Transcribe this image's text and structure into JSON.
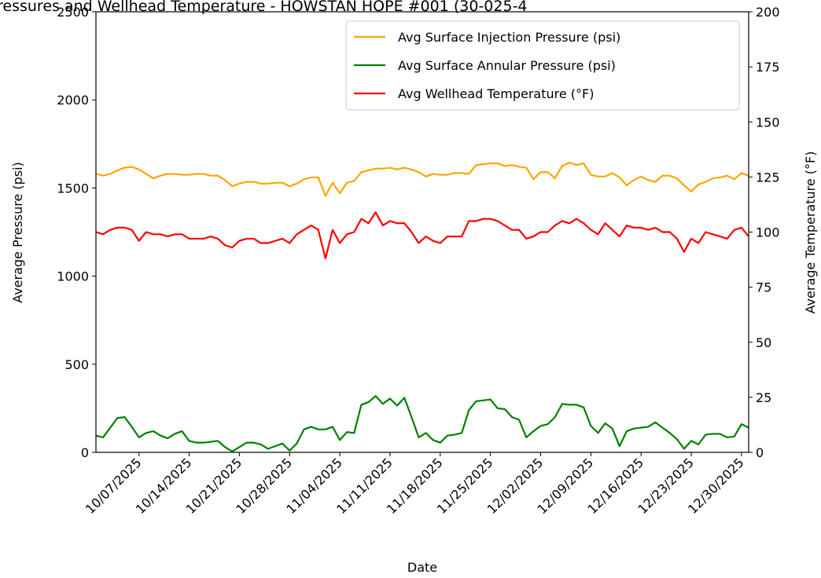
{
  "chart_data": {
    "type": "line",
    "title": "ressures and Wellhead Temperature - HOWSTAN HOPE #001 (30-025-4",
    "xlabel": "Date",
    "ylabel": "Average Pressure (psi)",
    "y2label": "Average Temperature (°F)",
    "x": [
      "10/01/2025",
      "10/02/2025",
      "10/03/2025",
      "10/04/2025",
      "10/05/2025",
      "10/06/2025",
      "10/07/2025",
      "10/08/2025",
      "10/09/2025",
      "10/10/2025",
      "10/11/2025",
      "10/12/2025",
      "10/13/2025",
      "10/14/2025",
      "10/15/2025",
      "10/16/2025",
      "10/17/2025",
      "10/18/2025",
      "10/19/2025",
      "10/20/2025",
      "10/21/2025",
      "10/22/2025",
      "10/23/2025",
      "10/24/2025",
      "10/25/2025",
      "10/26/2025",
      "10/27/2025",
      "10/28/2025",
      "10/29/2025",
      "10/30/2025",
      "10/31/2025",
      "11/01/2025",
      "11/02/2025",
      "11/03/2025",
      "11/04/2025",
      "11/05/2025",
      "11/06/2025",
      "11/07/2025",
      "11/08/2025",
      "11/09/2025",
      "11/10/2025",
      "11/11/2025",
      "11/12/2025",
      "11/13/2025",
      "11/14/2025",
      "11/15/2025",
      "11/16/2025",
      "11/17/2025",
      "11/18/2025",
      "11/19/2025",
      "11/20/2025",
      "11/21/2025",
      "11/22/2025",
      "11/23/2025",
      "11/24/2025",
      "11/25/2025",
      "11/26/2025",
      "11/27/2025",
      "11/28/2025",
      "11/29/2025",
      "11/30/2025",
      "12/01/2025",
      "12/02/2025",
      "12/03/2025",
      "12/04/2025",
      "12/05/2025",
      "12/06/2025",
      "12/07/2025",
      "12/08/2025",
      "12/09/2025",
      "12/10/2025",
      "12/11/2025",
      "12/12/2025",
      "12/13/2025",
      "12/14/2025",
      "12/15/2025",
      "12/16/2025",
      "12/17/2025",
      "12/18/2025",
      "12/19/2025",
      "12/20/2025",
      "12/21/2025",
      "12/22/2025",
      "12/23/2025",
      "12/24/2025",
      "12/25/2025",
      "12/26/2025",
      "12/27/2025",
      "12/28/2025",
      "12/29/2025",
      "12/30/2025",
      "12/31/2025"
    ],
    "series": [
      {
        "name": "Avg Surface Injection Pressure (psi)",
        "color": "orange",
        "values": [
          1580,
          1570,
          1580,
          1600,
          1615,
          1620,
          1605,
          1580,
          1555,
          1570,
          1580,
          1580,
          1575,
          1575,
          1580,
          1580,
          1570,
          1570,
          1545,
          1510,
          1525,
          1535,
          1535,
          1525,
          1525,
          1530,
          1530,
          1510,
          1525,
          1550,
          1560,
          1560,
          1455,
          1530,
          1470,
          1530,
          1540,
          1590,
          1600,
          1610,
          1610,
          1615,
          1605,
          1615,
          1605,
          1590,
          1565,
          1580,
          1575,
          1575,
          1585,
          1585,
          1580,
          1630,
          1635,
          1640,
          1640,
          1625,
          1630,
          1620,
          1615,
          1550,
          1590,
          1590,
          1555,
          1625,
          1645,
          1630,
          1640,
          1575,
          1565,
          1565,
          1585,
          1560,
          1515,
          1545,
          1565,
          1545,
          1535,
          1570,
          1570,
          1555,
          1515,
          1480,
          1520,
          1535,
          1555,
          1560,
          1570,
          1550,
          1585,
          1570
        ]
      },
      {
        "name": "Avg Surface Annular Pressure (psi)",
        "color": "green",
        "values": [
          95,
          85,
          140,
          195,
          200,
          145,
          85,
          110,
          120,
          95,
          80,
          105,
          120,
          65,
          55,
          55,
          60,
          65,
          30,
          5,
          30,
          55,
          55,
          45,
          20,
          35,
          50,
          10,
          50,
          130,
          145,
          130,
          130,
          145,
          70,
          115,
          110,
          270,
          285,
          320,
          275,
          305,
          265,
          310,
          200,
          85,
          110,
          70,
          55,
          95,
          100,
          110,
          240,
          290,
          295,
          300,
          250,
          245,
          200,
          185,
          85,
          120,
          150,
          160,
          200,
          275,
          270,
          270,
          255,
          150,
          110,
          165,
          135,
          35,
          120,
          135,
          140,
          145,
          170,
          140,
          110,
          75,
          20,
          65,
          45,
          100,
          105,
          105,
          85,
          90,
          160,
          140
        ]
      },
      {
        "name": "Avg Wellhead Temperature (°F)",
        "color": "red",
        "axis": "y2",
        "values": [
          100,
          99,
          101,
          102,
          102,
          101,
          96,
          100,
          99,
          99,
          98,
          99,
          99,
          97,
          97,
          97,
          98,
          97,
          94,
          93,
          96,
          97,
          97,
          95,
          95,
          96,
          97,
          95,
          99,
          101,
          103,
          101,
          88,
          101,
          95,
          99,
          100,
          106,
          104,
          109,
          103,
          105,
          104,
          104,
          100,
          95,
          98,
          96,
          95,
          98,
          98,
          98,
          105,
          105,
          106,
          106,
          105,
          103,
          101,
          101,
          97,
          98,
          100,
          100,
          103,
          105,
          104,
          106,
          104,
          101,
          99,
          104,
          101,
          98,
          103,
          102,
          102,
          101,
          102,
          100,
          100,
          97,
          91,
          97,
          95,
          100,
          99,
          98,
          97,
          101,
          102,
          98
        ]
      }
    ],
    "xlim": [
      "10/01/2025",
      "12/31/2025"
    ],
    "xticks": [
      "10/07/2025",
      "10/14/2025",
      "10/21/2025",
      "10/28/2025",
      "11/04/2025",
      "11/11/2025",
      "11/18/2025",
      "11/25/2025",
      "12/02/2025",
      "12/09/2025",
      "12/16/2025",
      "12/23/2025",
      "12/30/2025"
    ],
    "ylim": [
      0,
      2500
    ],
    "yticks": [
      0,
      500,
      1000,
      1500,
      2000,
      2500
    ],
    "y2lim": [
      0,
      200
    ],
    "y2ticks": [
      0,
      25,
      50,
      75,
      100,
      125,
      150,
      175,
      200
    ],
    "grid": false,
    "legend": "upper right"
  }
}
